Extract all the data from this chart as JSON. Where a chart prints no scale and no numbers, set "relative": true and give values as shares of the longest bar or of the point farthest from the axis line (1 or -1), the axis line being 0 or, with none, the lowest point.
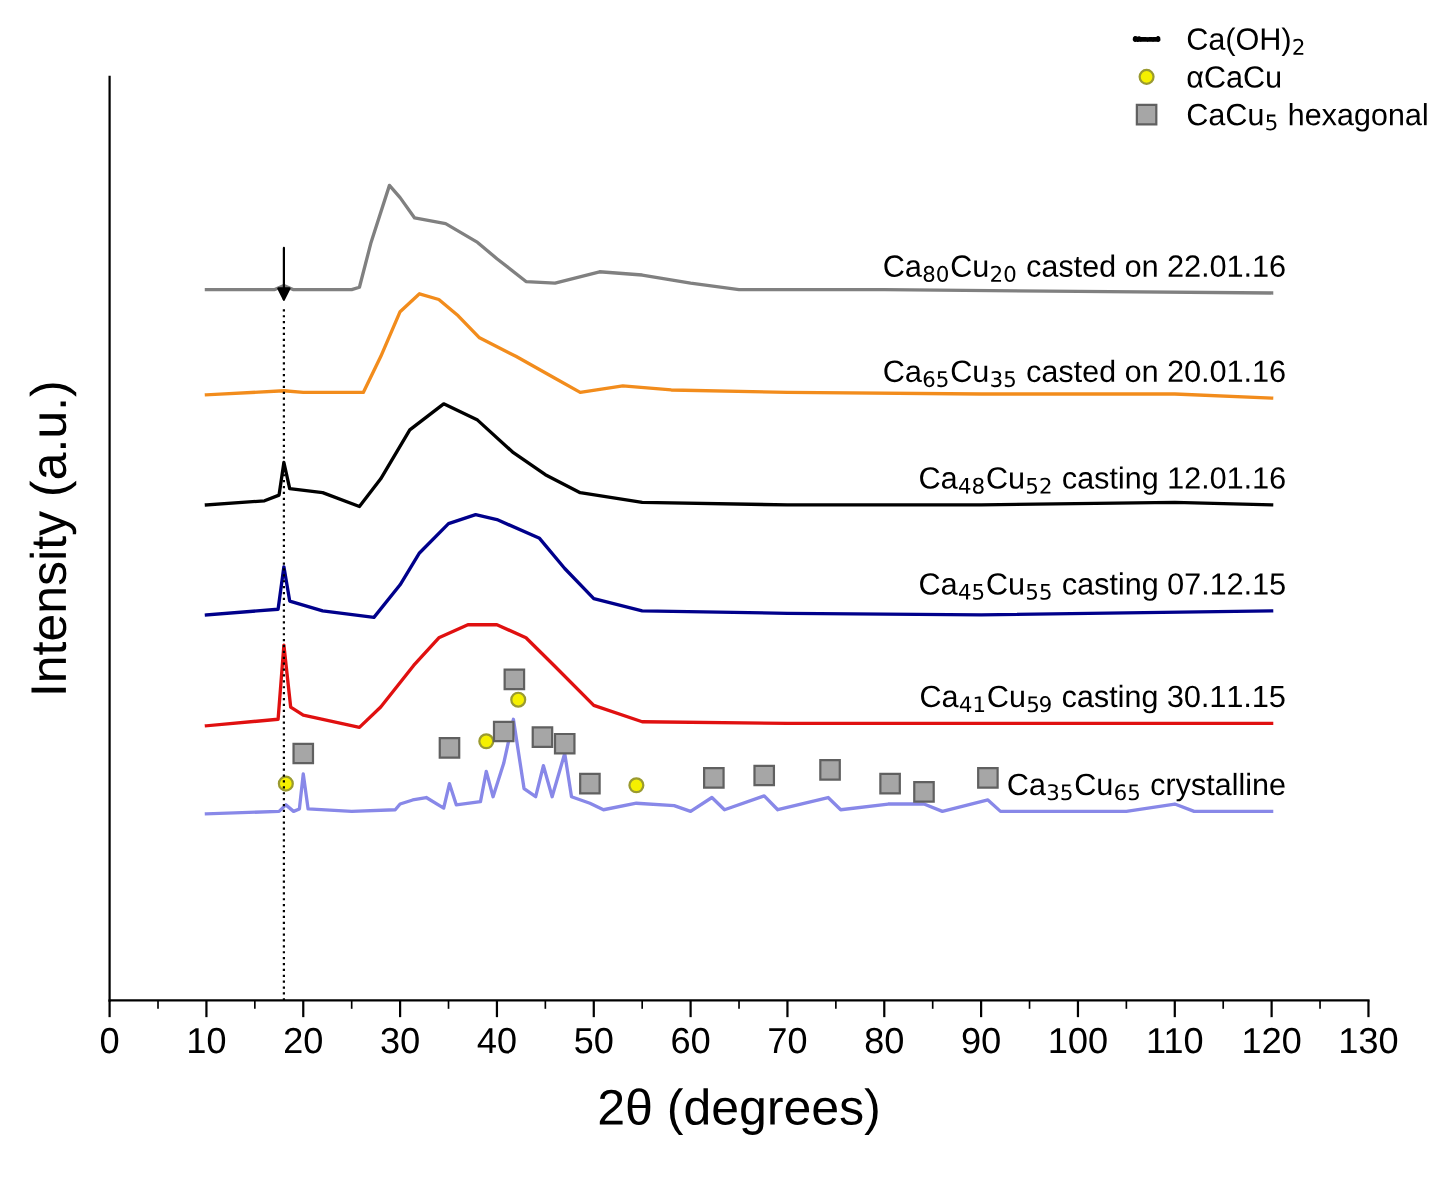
{
  "chart_data": {
    "type": "line",
    "relative": true,
    "xlabel": "2θ (degrees)",
    "ylabel": "Intensity (a.u.)",
    "xlim": [
      0,
      130
    ],
    "xticks": [
      0,
      10,
      20,
      30,
      40,
      50,
      60,
      70,
      80,
      90,
      100,
      110,
      120,
      130
    ],
    "grid": false,
    "legend": "top right",
    "line_style": "solid",
    "marker": "none",
    "ref_lines": [
      {
        "axis": "x",
        "value": 18,
        "label": "Ca(OH)$_{2}$",
        "color": "#000000",
        "line_style": "dotted"
      }
    ],
    "series": [
      {
        "name": "Ca$_{80}$Cu$_{20}$ casted on 22.01.16",
        "color": "#808080",
        "x": [
          10,
          17,
          18,
          19,
          25,
          25.8,
          27,
          28.9,
          30,
          31.5,
          34.7,
          38,
          40,
          43,
          46,
          50.6,
          55,
          60,
          65,
          80,
          100,
          120
        ],
        "values": [
          0.872,
          0.872,
          0.877,
          0.872,
          0.872,
          0.875,
          0.93,
          1.0,
          0.985,
          0.96,
          0.953,
          0.93,
          0.91,
          0.882,
          0.88,
          0.894,
          0.89,
          0.88,
          0.872,
          0.872,
          0.87,
          0.868
        ]
      },
      {
        "name": "Ca$_{65}$Cu$_{35}$ casted on 20.01.16",
        "color": "#f28c1c",
        "x": [
          10,
          18,
          20,
          26.2,
          28,
          30,
          32,
          34,
          36,
          38.2,
          42,
          45.9,
          48.6,
          53,
          58,
          70,
          90,
          110,
          120
        ],
        "values": [
          0.743,
          0.748,
          0.746,
          0.746,
          0.79,
          0.845,
          0.867,
          0.86,
          0.84,
          0.813,
          0.79,
          0.764,
          0.746,
          0.754,
          0.749,
          0.746,
          0.744,
          0.744,
          0.739
        ]
      },
      {
        "name": "Ca$_{48}$Cu$_{52}$ casting 12.01.16",
        "color": "#000000",
        "x": [
          10,
          16,
          17.5,
          18,
          18.6,
          22,
          25.8,
          28,
          31,
          34.5,
          38,
          41.7,
          45,
          48.6,
          55,
          70,
          90,
          110,
          120
        ],
        "values": [
          0.608,
          0.613,
          0.62,
          0.66,
          0.628,
          0.623,
          0.606,
          0.64,
          0.7,
          0.732,
          0.712,
          0.672,
          0.645,
          0.623,
          0.611,
          0.608,
          0.608,
          0.611,
          0.608
        ]
      },
      {
        "name": "Ca$_{45}$Cu$_{55}$ casting 07.12.15",
        "color": "#00008b",
        "x": [
          10,
          17.4,
          18,
          18.6,
          22,
          27.3,
          30,
          32,
          35,
          37.8,
          40,
          44.4,
          47,
          50,
          55,
          70,
          90,
          120
        ],
        "values": [
          0.473,
          0.48,
          0.532,
          0.49,
          0.478,
          0.47,
          0.51,
          0.549,
          0.585,
          0.596,
          0.59,
          0.567,
          0.53,
          0.493,
          0.478,
          0.475,
          0.473,
          0.478
        ]
      },
      {
        "name": "Ca$_{41}$Cu$_{59}$ casting 30.11.15",
        "color": "#e01010",
        "x": [
          10,
          17.4,
          18,
          18.7,
          20,
          25.8,
          28,
          31.4,
          34,
          37,
          40,
          43,
          45.9,
          50,
          55,
          70,
          90,
          120
        ],
        "values": [
          0.337,
          0.345,
          0.436,
          0.36,
          0.35,
          0.335,
          0.36,
          0.411,
          0.445,
          0.461,
          0.461,
          0.445,
          0.411,
          0.362,
          0.342,
          0.34,
          0.34,
          0.34
        ]
      },
      {
        "name": "Ca$_{35}$Cu$_{65}$ crystalline",
        "color": "#8888e8",
        "x": [
          10,
          17.5,
          18.2,
          19,
          19.6,
          20,
          20.5,
          25,
          29.5,
          30,
          31.3,
          32.7,
          34.5,
          35.1,
          35.8,
          38.3,
          38.9,
          39.6,
          40.7,
          41.7,
          42.8,
          44,
          44.8,
          45.7,
          47,
          47.7,
          49.6,
          51,
          54.4,
          58.3,
          60,
          62.2,
          63.5,
          67.6,
          69,
          74.2,
          75.5,
          80.4,
          84.1,
          86,
          90.7,
          92,
          105,
          110,
          112,
          120
        ],
        "values": [
          0.229,
          0.232,
          0.24,
          0.232,
          0.235,
          0.278,
          0.235,
          0.232,
          0.234,
          0.241,
          0.246,
          0.249,
          0.236,
          0.266,
          0.24,
          0.244,
          0.281,
          0.25,
          0.291,
          0.345,
          0.26,
          0.25,
          0.288,
          0.25,
          0.303,
          0.25,
          0.242,
          0.234,
          0.242,
          0.239,
          0.232,
          0.249,
          0.234,
          0.251,
          0.234,
          0.249,
          0.234,
          0.241,
          0.241,
          0.232,
          0.246,
          0.232,
          0.232,
          0.241,
          0.232,
          0.232
        ]
      },
      {
        "name": "αCaCu",
        "type": "scatter",
        "marker": "circle",
        "color": "#f5f000",
        "x": [
          18.2,
          38.9,
          42.2,
          54.4
        ],
        "values": [
          0.266,
          0.318,
          0.369,
          0.264
        ]
      },
      {
        "name": "CaCu$_{5}$ hexagonal",
        "type": "scatter",
        "marker": "square",
        "color": "#a6a6a6",
        "x": [
          20.0,
          35.1,
          40.7,
          41.8,
          44.7,
          47,
          49.6,
          62.4,
          67.6,
          74.4,
          80.6,
          84.1,
          90.7
        ],
        "values": [
          0.303,
          0.31,
          0.33,
          0.394,
          0.323,
          0.315,
          0.266,
          0.273,
          0.276,
          0.283,
          0.266,
          0.256,
          0.273
        ]
      }
    ]
  }
}
